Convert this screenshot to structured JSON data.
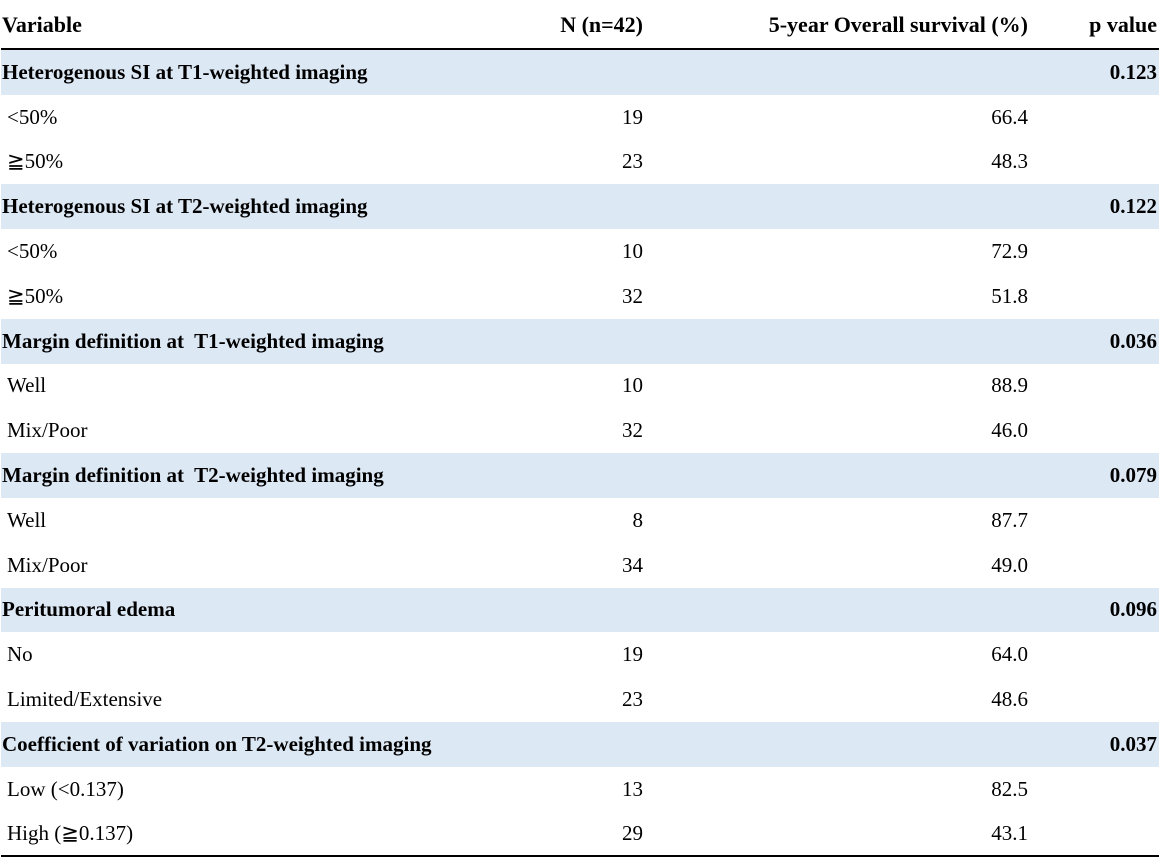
{
  "header": {
    "variable": "Variable",
    "n": "N (n=42)",
    "os": "5-year Overall survival (%)",
    "p": "p value"
  },
  "groups": [
    {
      "label": "Heterogenous SI at T1-weighted imaging",
      "p": "0.123",
      "rows": [
        {
          "label": "<50%",
          "n": "19",
          "os": "66.4"
        },
        {
          "label": "≧50%",
          "n": "23",
          "os": "48.3"
        }
      ]
    },
    {
      "label": "Heterogenous SI at T2-weighted imaging",
      "p": "0.122",
      "rows": [
        {
          "label": "<50%",
          "n": "10",
          "os": "72.9"
        },
        {
          "label": "≧50%",
          "n": "32",
          "os": "51.8"
        }
      ]
    },
    {
      "label": "Margin definition at  T1-weighted imaging",
      "p": "0.036",
      "rows": [
        {
          "label": "Well",
          "n": "10",
          "os": "88.9"
        },
        {
          "label": "Mix/Poor",
          "n": "32",
          "os": "46.0"
        }
      ]
    },
    {
      "label": "Margin definition at  T2-weighted imaging",
      "p": "0.079",
      "rows": [
        {
          "label": "Well",
          "n": "8",
          "os": "87.7"
        },
        {
          "label": "Mix/Poor",
          "n": "34",
          "os": "49.0"
        }
      ]
    },
    {
      "label": "Peritumoral edema",
      "p": "0.096",
      "rows": [
        {
          "label": "No",
          "n": "19",
          "os": "64.0"
        },
        {
          "label": "Limited/Extensive",
          "n": "23",
          "os": "48.6"
        }
      ]
    },
    {
      "label": "Coefficient of variation on T2-weighted imaging",
      "p": "0.037",
      "rows": [
        {
          "label": "Low (<0.137)",
          "n": "13",
          "os": "82.5"
        },
        {
          "label": "High (≧0.137)",
          "n": "29",
          "os": "43.1"
        }
      ]
    }
  ],
  "colors": {
    "group_background": "#dde8f5",
    "rule": "#000000"
  }
}
